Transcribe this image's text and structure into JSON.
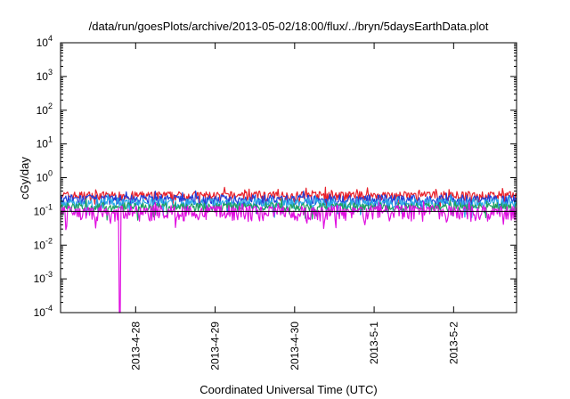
{
  "chart_data": {
    "type": "line",
    "title": "/data/run/goesPlots/archive/2013-05-02/18:00/flux/../bryn/5daysEarthData.plot",
    "xlabel": "Coordinated Universal Time (UTC)",
    "ylabel": "cGy/day",
    "yscale": "log",
    "ylim": [
      0.0001,
      10000
    ],
    "xlim": [
      "2013-04-27 01:20",
      "2013-05-02 19:00"
    ],
    "y_ticks": [
      {
        "base": "10",
        "exp": "-4"
      },
      {
        "base": "10",
        "exp": "-3"
      },
      {
        "base": "10",
        "exp": "-2"
      },
      {
        "base": "10",
        "exp": "-1"
      },
      {
        "base": "10",
        "exp": "0"
      },
      {
        "base": "10",
        "exp": "1"
      },
      {
        "base": "10",
        "exp": "2"
      },
      {
        "base": "10",
        "exp": "3"
      },
      {
        "base": "10",
        "exp": "4"
      }
    ],
    "x_ticks": [
      "2013-4-28",
      "2013-4-29",
      "2013-4-30",
      "2013-5-1",
      "2013-5-2"
    ],
    "grid": false,
    "series": [
      {
        "color": "#e8202a",
        "level": 0.3,
        "spread": 0.09
      },
      {
        "color": "#1f3fd8",
        "level": 0.23,
        "spread": 0.08
      },
      {
        "color": "#2aa8e8",
        "level": 0.18,
        "spread": 0.06
      },
      {
        "color": "#20a060",
        "level": 0.14,
        "spread": 0.04
      },
      {
        "color": "#e010e0",
        "level": 0.1,
        "spread": 0.05
      }
    ],
    "dropout": {
      "start": "2013-04-27 18:50",
      "end": "2013-04-27 19:25",
      "series_color": "#e010e0"
    },
    "reference_line": {
      "value": 0.1,
      "color": "#000000"
    }
  }
}
